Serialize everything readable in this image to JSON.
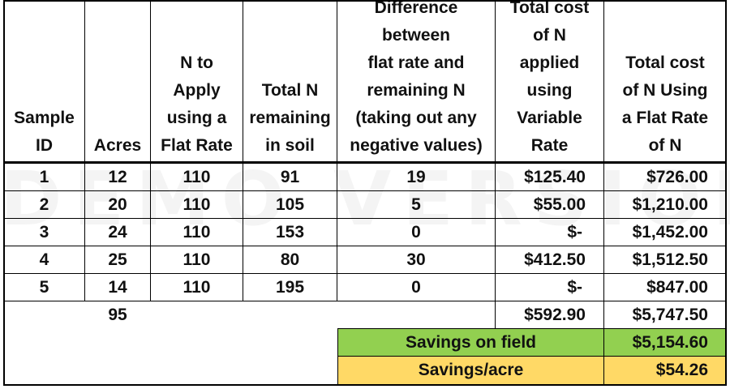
{
  "headers": {
    "sample_id": [
      "Sample",
      "ID"
    ],
    "acres": [
      "Acres"
    ],
    "flat_rate": [
      "N to",
      "Apply",
      "using a",
      "Flat Rate"
    ],
    "remaining": [
      "Total N",
      "remaining",
      "in soil"
    ],
    "difference": [
      "Difference",
      "between",
      "flat rate and",
      "remaining N",
      "(taking out any",
      "negative values)"
    ],
    "variable_cost": [
      "Total cost",
      "of N",
      "applied",
      "using",
      "Variable",
      "Rate"
    ],
    "flat_cost": [
      "Total cost",
      "of N Using",
      "a Flat Rate",
      "of N"
    ]
  },
  "rows": [
    {
      "id": "1",
      "acres": "12",
      "flat": "110",
      "remaining": "91",
      "diff": "19",
      "var_cost": "$125.40",
      "flat_cost": "$726.00"
    },
    {
      "id": "2",
      "acres": "20",
      "flat": "110",
      "remaining": "105",
      "diff": "5",
      "var_cost": "$55.00",
      "flat_cost": "$1,210.00"
    },
    {
      "id": "3",
      "acres": "24",
      "flat": "110",
      "remaining": "153",
      "diff": "0",
      "var_cost": "$-",
      "flat_cost": "$1,452.00"
    },
    {
      "id": "4",
      "acres": "25",
      "flat": "110",
      "remaining": "80",
      "diff": "30",
      "var_cost": "$412.50",
      "flat_cost": "$1,512.50"
    },
    {
      "id": "5",
      "acres": "14",
      "flat": "110",
      "remaining": "195",
      "diff": "0",
      "var_cost": "$-",
      "flat_cost": "$847.00"
    }
  ],
  "totals": {
    "acres": "95",
    "var_cost": "$592.90",
    "flat_cost": "$5,747.50"
  },
  "savings": {
    "field_label": "Savings on field",
    "field_value": "$5,154.60",
    "acre_label": "Savings/acre",
    "acre_value": "$54.26"
  },
  "watermark": "DEMO VERSION",
  "colors": {
    "savings_field": "#92d050",
    "savings_acre": "#ffd966"
  }
}
